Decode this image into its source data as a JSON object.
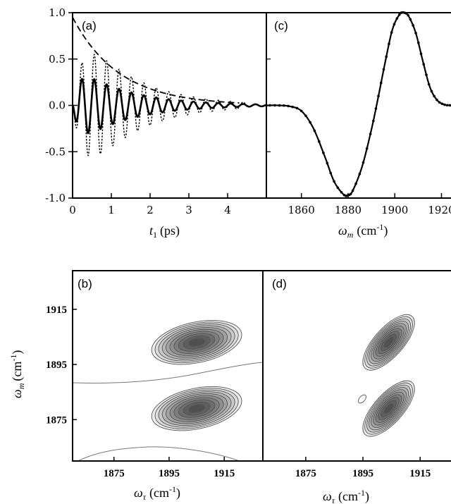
{
  "chart_data": [
    {
      "panel": "(a)",
      "type": "line",
      "xlabel_var": "t",
      "xlabel_sub": "1",
      "xlabel_unit": "(ps)",
      "xlim": [
        0,
        5.0
      ],
      "ylim": [
        -1.0,
        1.0
      ],
      "xticks": [
        "0",
        "1",
        "2",
        "3",
        "4"
      ],
      "yticks": [
        "-1.0",
        "-0.5",
        "0.0",
        "0.5",
        "1.0"
      ],
      "series": [
        {
          "style": "solid",
          "amplitude": 0.45,
          "decay_ps": 1.3,
          "period_ps": 0.32,
          "rise_ps": 0.5,
          "t_end": 5.0
        },
        {
          "style": "dotted",
          "amplitude": 1.0,
          "decay_ps": 1.3,
          "period_ps": 0.32,
          "rise_ps": 0.9,
          "t_end": 4.5
        },
        {
          "style": "dashed",
          "amplitude": 0.95,
          "decay_ps": 1.2,
          "t_end": 4.3
        }
      ]
    },
    {
      "panel": "(c)",
      "type": "line",
      "xlabel_var": "ω",
      "xlabel_sub": "m",
      "xlabel_unit": "(cm",
      "xlabel_exp": "-1",
      "xlabel_close": ")",
      "xlim": [
        1845,
        1928
      ],
      "ylim": [
        -1.0,
        1.0
      ],
      "xticks": [
        "1860",
        "1880",
        "1900",
        "1920"
      ],
      "series": [
        {
          "style": "solid-markers",
          "points": [
            [
              1845,
              0.0
            ],
            [
              1850,
              0.0
            ],
            [
              1855,
              -0.01
            ],
            [
              1860,
              -0.06
            ],
            [
              1865,
              -0.24
            ],
            [
              1870,
              -0.55
            ],
            [
              1874,
              -0.82
            ],
            [
              1878,
              -0.96
            ],
            [
              1880,
              -0.97
            ],
            [
              1882,
              -0.92
            ],
            [
              1886,
              -0.66
            ],
            [
              1890,
              -0.26
            ],
            [
              1893,
              0.1
            ],
            [
              1896,
              0.48
            ],
            [
              1899,
              0.82
            ],
            [
              1902,
              0.98
            ],
            [
              1904,
              1.0
            ],
            [
              1906,
              0.96
            ],
            [
              1909,
              0.78
            ],
            [
              1912,
              0.48
            ],
            [
              1915,
              0.2
            ],
            [
              1918,
              0.06
            ],
            [
              1921,
              0.01
            ],
            [
              1924,
              0.0
            ],
            [
              1928,
              0.0
            ]
          ]
        }
      ]
    },
    {
      "panel": "(b)",
      "type": "contour",
      "xlabel_var": "ω",
      "xlabel_sub": "τ",
      "xlabel_unit": "(cm",
      "xlabel_exp": "-1",
      "xlabel_close": ")",
      "ylabel_var": "ω",
      "ylabel_sub": "m",
      "ylabel_unit": "(cm",
      "ylabel_exp": "-1",
      "ylabel_close": ")",
      "xlim": [
        1860,
        1929
      ],
      "ylim": [
        1860,
        1929
      ],
      "xticks": [
        "1875",
        "1895",
        "1915"
      ],
      "yticks": [
        "1875",
        "1895",
        "1915"
      ],
      "peaks": [
        {
          "x": 1905,
          "y": 1903,
          "sx": 9.5,
          "sy": 4.2,
          "rot_deg": 12
        },
        {
          "x": 1905,
          "y": 1879,
          "sx": 9.5,
          "sy": 4.2,
          "rot_deg": 12
        }
      ]
    },
    {
      "panel": "(d)",
      "type": "contour",
      "xlabel_var": "ω",
      "xlabel_sub": "τ",
      "xlabel_unit": "(cm",
      "xlabel_exp": "-1",
      "xlabel_close": ")",
      "xlim": [
        1860,
        1929
      ],
      "ylim": [
        1860,
        1929
      ],
      "xticks": [
        "1875",
        "1895",
        "1915"
      ],
      "peaks": [
        {
          "x": 1904,
          "y": 1903,
          "sx": 7.0,
          "sy": 3.0,
          "rot_deg": 48
        },
        {
          "x": 1904,
          "y": 1879,
          "sx": 7.0,
          "sy": 3.0,
          "rot_deg": 48
        }
      ]
    }
  ]
}
